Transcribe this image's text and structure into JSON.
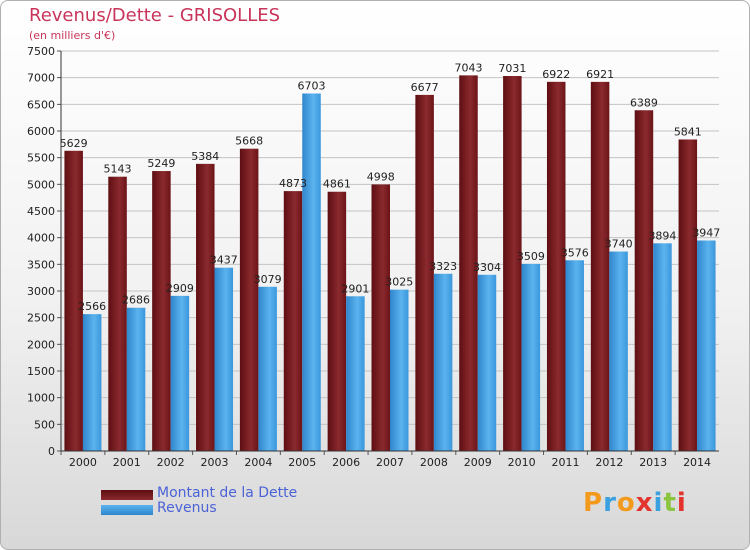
{
  "chart_data": {
    "type": "bar",
    "title": "Revenus/Dette - GRISOLLES",
    "subtitle": "(en milliers d'€)",
    "categories": [
      "2000",
      "2001",
      "2002",
      "2003",
      "2004",
      "2005",
      "2006",
      "2007",
      "2008",
      "2009",
      "2010",
      "2011",
      "2012",
      "2013",
      "2014"
    ],
    "series": [
      {
        "name": "Montant de la Dette",
        "color": "#7a1d22",
        "values": [
          5629,
          5143,
          5249,
          5384,
          5668,
          4873,
          4861,
          4998,
          6677,
          7043,
          7031,
          6922,
          6921,
          6389,
          5841
        ]
      },
      {
        "name": "Revenus",
        "color": "#3f9ee0",
        "values": [
          2566,
          2686,
          2909,
          3437,
          3079,
          6703,
          2901,
          3025,
          3323,
          3304,
          3509,
          3576,
          3740,
          3894,
          3947
        ]
      }
    ],
    "yticks": [
      "0",
      "500",
      "1000",
      "1500",
      "2000",
      "2500",
      "3000",
      "3500",
      "4000",
      "4500",
      "5000",
      "5500",
      "6000",
      "6500",
      "7000",
      "7500"
    ],
    "ylim": [
      0,
      7500
    ],
    "grid": true,
    "legend_position": "bottom-left"
  },
  "logo": {
    "letters": [
      "P",
      "r",
      "o",
      "x",
      "i",
      "t",
      "i"
    ],
    "colors": [
      "#f39a1c",
      "#3aa0e0",
      "#f39a1c",
      "#e2342c",
      "#3aa0e0",
      "#8bc53f",
      "#e2342c"
    ]
  }
}
